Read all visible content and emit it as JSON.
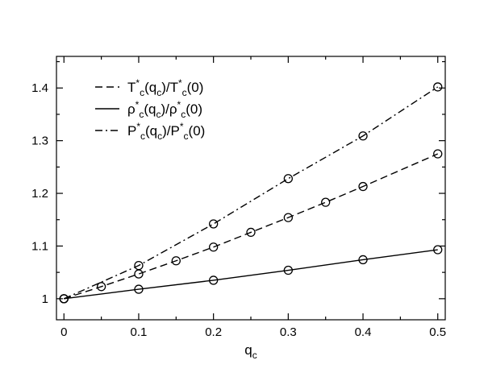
{
  "chart_data": {
    "type": "line",
    "title": "",
    "xlabel": "q",
    "xlabel_sub": "c",
    "ylabel": "",
    "xlim": [
      -0.01,
      0.51
    ],
    "ylim": [
      0.96,
      1.46
    ],
    "x_ticks": [
      0,
      0.1,
      0.2,
      0.3,
      0.4,
      0.5
    ],
    "x_tick_labels": [
      "0",
      "0.1",
      "0.2",
      "0.3",
      "0.4",
      "0.5"
    ],
    "y_ticks": [
      1,
      1.1,
      1.2,
      1.3,
      1.4
    ],
    "y_tick_labels": [
      "1",
      "1.1",
      "1.2",
      "1.3",
      "1.4"
    ],
    "grid": false,
    "legend_position": "top-left",
    "series": [
      {
        "key": "T",
        "line_style": "dashed",
        "legend_parts": [
          {
            "t": "T",
            "s": "n"
          },
          {
            "t": "*",
            "s": "sup"
          },
          {
            "t": "c",
            "s": "sub"
          },
          {
            "t": "(q",
            "s": "n"
          },
          {
            "t": "c",
            "s": "sub"
          },
          {
            "t": ")/T",
            "s": "n"
          },
          {
            "t": "*",
            "s": "sup"
          },
          {
            "t": "c",
            "s": "sub"
          },
          {
            "t": "(0)",
            "s": "n"
          }
        ],
        "points": [
          [
            0,
            1.0
          ],
          [
            0.05,
            1.023
          ],
          [
            0.1,
            1.047
          ],
          [
            0.15,
            1.072
          ],
          [
            0.2,
            1.098
          ],
          [
            0.25,
            1.126
          ],
          [
            0.3,
            1.154
          ],
          [
            0.35,
            1.183
          ],
          [
            0.4,
            1.213
          ],
          [
            0.5,
            1.275
          ]
        ]
      },
      {
        "key": "rho",
        "line_style": "solid",
        "legend_parts": [
          {
            "t": "ρ",
            "s": "n"
          },
          {
            "t": "*",
            "s": "sup"
          },
          {
            "t": "c",
            "s": "sub"
          },
          {
            "t": "(q",
            "s": "n"
          },
          {
            "t": "c",
            "s": "sub"
          },
          {
            "t": ")/ρ",
            "s": "n"
          },
          {
            "t": "*",
            "s": "sup"
          },
          {
            "t": "c",
            "s": "sub"
          },
          {
            "t": "(0)",
            "s": "n"
          }
        ],
        "points": [
          [
            0,
            1.0
          ],
          [
            0.1,
            1.018
          ],
          [
            0.2,
            1.035
          ],
          [
            0.3,
            1.054
          ],
          [
            0.4,
            1.074
          ],
          [
            0.5,
            1.093
          ]
        ]
      },
      {
        "key": "P",
        "line_style": "dashdot",
        "legend_parts": [
          {
            "t": "P",
            "s": "n"
          },
          {
            "t": "*",
            "s": "sup"
          },
          {
            "t": "c",
            "s": "sub"
          },
          {
            "t": "(q",
            "s": "n"
          },
          {
            "t": "c",
            "s": "sub"
          },
          {
            "t": ")/P",
            "s": "n"
          },
          {
            "t": "*",
            "s": "sup"
          },
          {
            "t": "c",
            "s": "sub"
          },
          {
            "t": "(0)",
            "s": "n"
          }
        ],
        "points": [
          [
            0,
            1.0
          ],
          [
            0.1,
            1.063
          ],
          [
            0.2,
            1.142
          ],
          [
            0.3,
            1.228
          ],
          [
            0.4,
            1.309
          ],
          [
            0.5,
            1.402
          ]
        ]
      }
    ]
  }
}
